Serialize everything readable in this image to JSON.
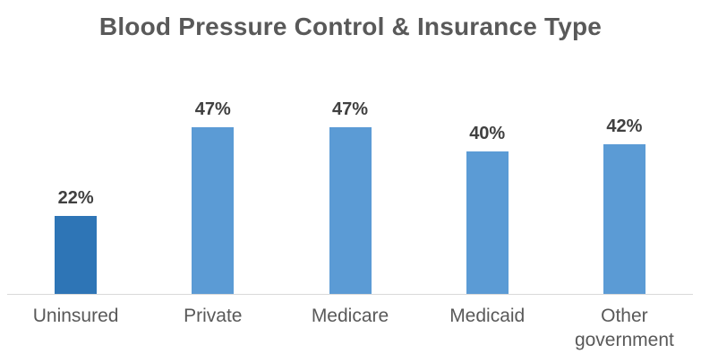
{
  "chart_data": {
    "type": "bar",
    "title": "Blood Pressure Control & Insurance Type",
    "categories": [
      "Uninsured",
      "Private",
      "Medicare",
      "Medicaid",
      "Other government"
    ],
    "values": [
      22,
      47,
      47,
      40,
      42
    ],
    "data_labels": [
      "22%",
      "47%",
      "47%",
      "40%",
      "42%"
    ],
    "xlabel": "",
    "ylabel": "",
    "ylim": [
      0,
      60
    ],
    "y_axis_visible": false,
    "gridlines": false,
    "legend_position": "none",
    "highlight_index": 0,
    "colors": {
      "bar": "#5B9BD5",
      "highlight_bar": "#2E75B6",
      "title_text": "#595959",
      "data_label_text": "#404040",
      "category_label_text": "#595959",
      "axis_line": "#D9D9D9",
      "background": "#FFFFFF"
    }
  }
}
